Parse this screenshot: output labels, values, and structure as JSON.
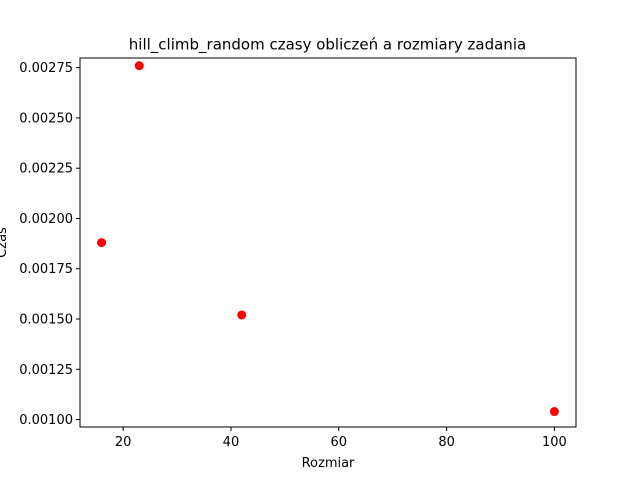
{
  "chart_data": {
    "type": "scatter",
    "title": "hill_climb_random czasy obliczeń a rozmiary zadania",
    "xlabel": "Rozmiar",
    "ylabel": "Czas",
    "xlim": [
      12,
      104
    ],
    "ylim": [
      0.000963,
      0.002798
    ],
    "xticks": [
      20,
      40,
      60,
      80,
      100
    ],
    "xtick_labels": [
      "20",
      "40",
      "60",
      "80",
      "100"
    ],
    "yticks": [
      0.001,
      0.00125,
      0.0015,
      0.00175,
      0.002,
      0.00225,
      0.0025,
      0.00275
    ],
    "ytick_labels": [
      "0.00100",
      "0.00125",
      "0.00150",
      "0.00175",
      "0.00200",
      "0.00225",
      "0.00250",
      "0.00275"
    ],
    "grid": false,
    "series": [
      {
        "color": "#ff0000",
        "points": [
          {
            "x": 16,
            "y": 0.00188
          },
          {
            "x": 23,
            "y": 0.00276
          },
          {
            "x": 42,
            "y": 0.00152
          },
          {
            "x": 100,
            "y": 0.00104
          }
        ]
      }
    ]
  }
}
